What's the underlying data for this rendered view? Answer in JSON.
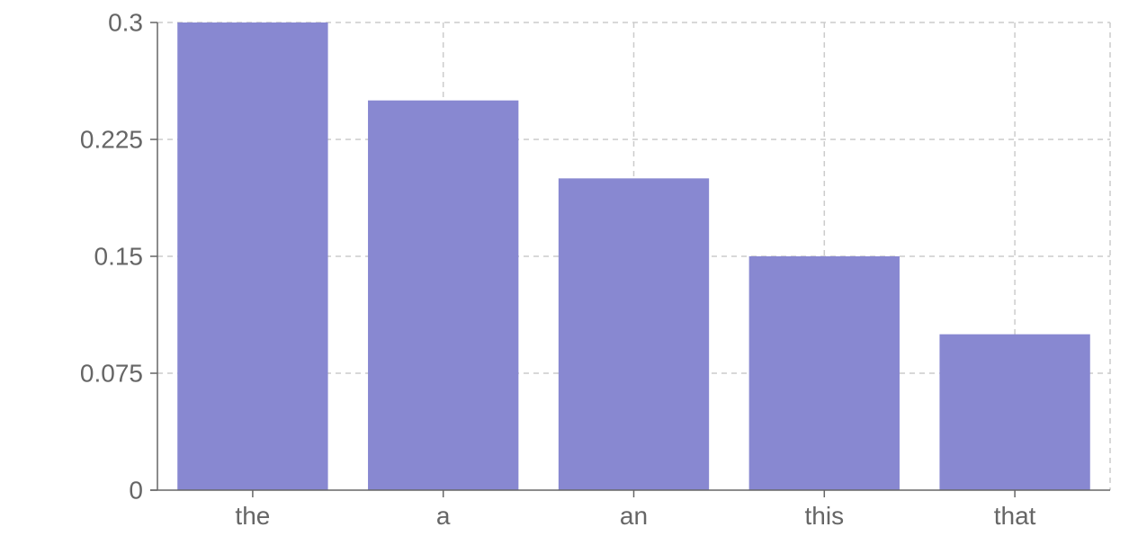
{
  "chart_data": {
    "type": "bar",
    "categories": [
      "the",
      "a",
      "an",
      "this",
      "that"
    ],
    "values": [
      0.3,
      0.25,
      0.2,
      0.15,
      0.1
    ],
    "title": "",
    "xlabel": "",
    "ylabel": "",
    "ylim": [
      0,
      0.3
    ],
    "yticks": [
      "0",
      "0.075",
      "0.15",
      "0.225",
      "0.3"
    ],
    "ytick_values": [
      0,
      0.075,
      0.15,
      0.225,
      0.3
    ],
    "grid": true,
    "bar_color": "#8888d1",
    "axis_color": "#666666",
    "grid_color": "#cccccc"
  }
}
